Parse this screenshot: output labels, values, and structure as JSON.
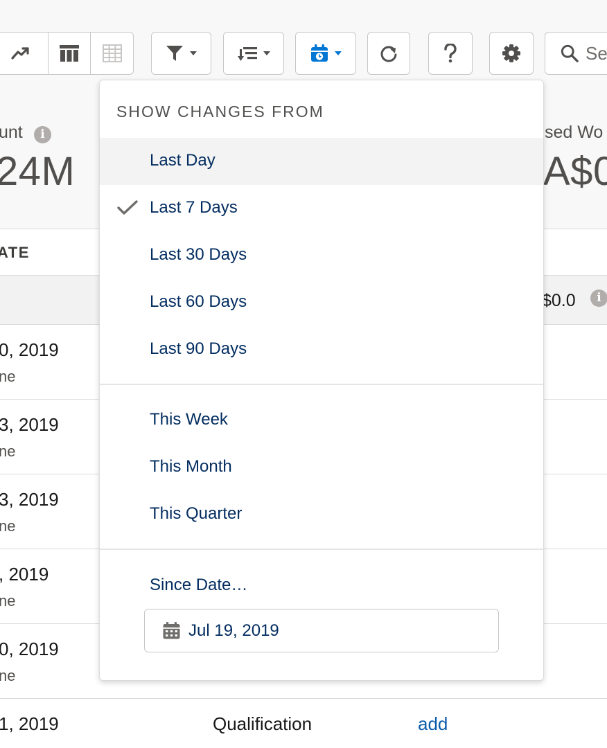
{
  "search": {
    "placeholder": "Se"
  },
  "summary": [
    {
      "label": "unt",
      "value": "24M"
    },
    {
      "label": "sed Wo",
      "value": "A$0"
    }
  ],
  "info_glyph": "i",
  "table": {
    "header": "ATE",
    "total": "$0.0",
    "rows": [
      {
        "date": "0, 2019",
        "sub": "ne"
      },
      {
        "date": "3, 2019",
        "sub": "ne"
      },
      {
        "date": "3, 2019",
        "sub": "ne"
      },
      {
        "date": ", 2019",
        "sub": "ne"
      },
      {
        "date": "0, 2019",
        "sub": "ne"
      },
      {
        "date": "1, 2019",
        "stage": "Qualification",
        "link": "add"
      }
    ]
  },
  "dropdown": {
    "heading": "SHOW CHANGES FROM",
    "group1": [
      {
        "label": "Last Day",
        "hovered": true
      },
      {
        "label": "Last 7 Days",
        "selected": true
      },
      {
        "label": "Last 30 Days"
      },
      {
        "label": "Last 60 Days"
      },
      {
        "label": "Last 90 Days"
      }
    ],
    "group2": [
      {
        "label": "This Week"
      },
      {
        "label": "This Month"
      },
      {
        "label": "This Quarter"
      }
    ],
    "since_label": "Since Date…",
    "since_value": "Jul 19, 2019"
  },
  "colors": {
    "accent": "#0176d3",
    "menu_text": "#032d60",
    "link": "#0b5cab"
  },
  "icons": [
    "line-chart-icon",
    "table-columns-icon",
    "grid-icon",
    "filter-icon",
    "sort-icon",
    "calendar-clock-icon",
    "refresh-icon",
    "help-icon",
    "gear-icon",
    "search-icon",
    "check-icon",
    "calendar-icon",
    "info-icon"
  ]
}
